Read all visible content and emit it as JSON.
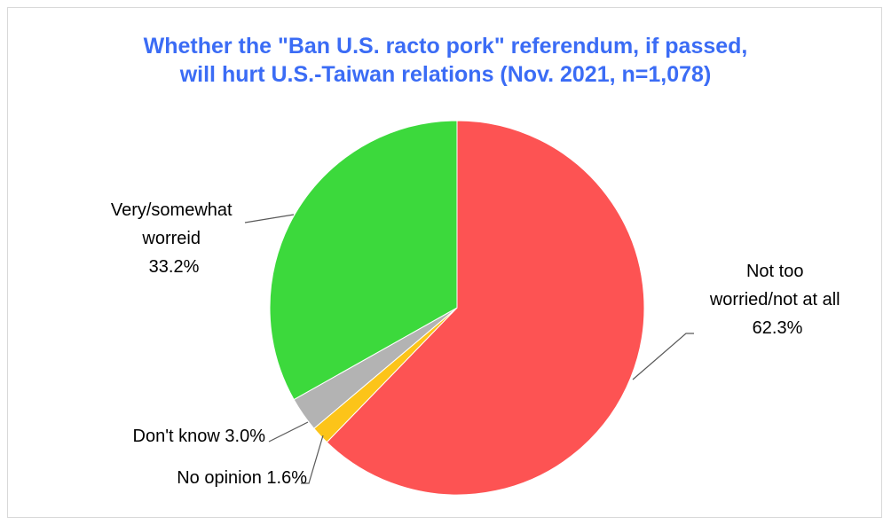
{
  "chart_data": {
    "type": "pie",
    "title_lines": [
      "Whether the \"Ban U.S. racto pork\" referendum, if passed,",
      "will hurt U.S.-Taiwan relations (Nov. 2021, n=1,078)"
    ],
    "slices": [
      {
        "key": "not_worried",
        "label_lines": [
          "Not too",
          "worried/not at all",
          "62.3%"
        ],
        "value": 62.3,
        "color": "#fd5353"
      },
      {
        "key": "no_opinion",
        "label_lines": [
          "No opinion 1.6%"
        ],
        "value": 1.6,
        "color": "#fcc419"
      },
      {
        "key": "dont_know",
        "label_lines": [
          "Don't know 3.0%"
        ],
        "value": 3.0,
        "color": "#b3b3b3"
      },
      {
        "key": "worried",
        "label_lines": [
          "Very/somewhat",
          "worreid",
          "33.2%"
        ],
        "value": 33.2,
        "color": "#3cd93c"
      }
    ],
    "start_angle_deg": 0,
    "direction": "clockwise"
  }
}
